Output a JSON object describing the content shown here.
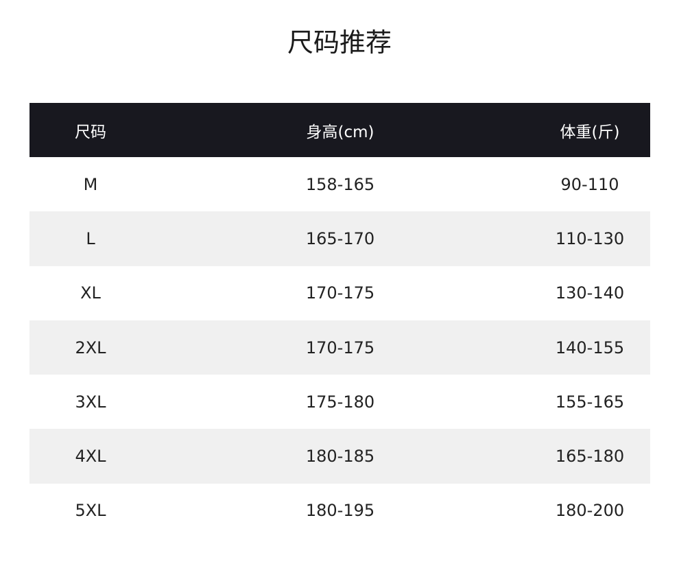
{
  "title": "尺码推荐",
  "table": {
    "headers": [
      "尺码",
      "身高(cm)",
      "体重(斤)"
    ],
    "rows": [
      [
        "M",
        "158-165",
        "90-110"
      ],
      [
        "L",
        "165-170",
        "110-130"
      ],
      [
        "XL",
        "170-175",
        "130-140"
      ],
      [
        "2XL",
        "170-175",
        "140-155"
      ],
      [
        "3XL",
        "175-180",
        "155-165"
      ],
      [
        "4XL",
        "180-185",
        "165-180"
      ],
      [
        "5XL",
        "180-195",
        "180-200"
      ]
    ]
  },
  "colors": {
    "header_bg": "#18181f",
    "alt_row_bg": "#f0f0f0"
  }
}
